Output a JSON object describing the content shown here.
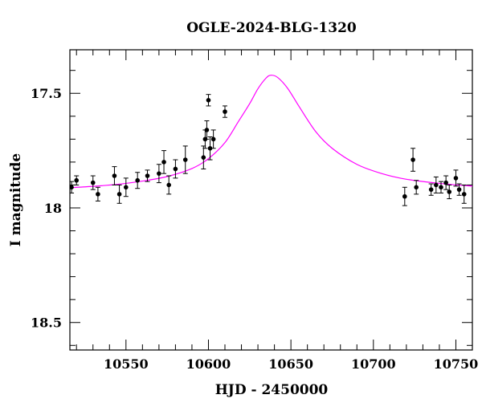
{
  "chart_data": {
    "type": "scatter",
    "title": "OGLE-2024-BLG-1320",
    "xlabel": "HJD - 2450000",
    "ylabel": "I magnitude",
    "xlim": [
      10516,
      10760
    ],
    "ylim": [
      18.62,
      17.31
    ],
    "y_inverted": true,
    "xticks": [
      10550,
      10600,
      10650,
      10700,
      10750
    ],
    "xtick_labels": [
      "10550",
      "10600",
      "10650",
      "10700",
      "10750"
    ],
    "yticks": [
      17.5,
      18,
      18.5
    ],
    "ytick_labels": [
      "17.5",
      "18",
      "18.5"
    ],
    "grid": false,
    "legend": "none",
    "colors": {
      "points": "#000000",
      "model": "#ff00ff"
    },
    "series": [
      {
        "kind": "points_with_errorbars",
        "x": [
          10517,
          10520,
          10530,
          10533,
          10543,
          10546,
          10550,
          10557,
          10563,
          10570,
          10573,
          10576,
          10580,
          10586,
          10597,
          10598,
          10599,
          10600,
          10601,
          10603,
          10610,
          10719,
          10724,
          10726,
          10735,
          10738,
          10741,
          10744,
          10746,
          10750,
          10752,
          10755
        ],
        "y": [
          17.91,
          17.88,
          17.89,
          17.94,
          17.86,
          17.94,
          17.91,
          17.88,
          17.86,
          17.85,
          17.8,
          17.9,
          17.83,
          17.79,
          17.78,
          17.7,
          17.66,
          17.53,
          17.74,
          17.7,
          17.58,
          17.95,
          17.79,
          17.91,
          17.92,
          17.9,
          17.91,
          17.89,
          17.93,
          17.87,
          17.92,
          17.94
        ],
        "err": [
          0.025,
          0.02,
          0.03,
          0.03,
          0.04,
          0.04,
          0.04,
          0.035,
          0.025,
          0.04,
          0.05,
          0.04,
          0.04,
          0.06,
          0.05,
          0.04,
          0.04,
          0.025,
          0.05,
          0.04,
          0.025,
          0.04,
          0.05,
          0.03,
          0.025,
          0.035,
          0.025,
          0.03,
          0.03,
          0.035,
          0.025,
          0.04
        ]
      },
      {
        "kind": "model_curve",
        "x": [
          10516,
          10530,
          10545,
          10560,
          10575,
          10590,
          10600,
          10610,
          10618,
          10625,
          10630,
          10635,
          10638,
          10642,
          10648,
          10655,
          10665,
          10675,
          10690,
          10705,
          10720,
          10740,
          10760
        ],
        "y": [
          17.912,
          17.906,
          17.897,
          17.883,
          17.863,
          17.828,
          17.785,
          17.715,
          17.625,
          17.545,
          17.48,
          17.433,
          17.421,
          17.431,
          17.478,
          17.558,
          17.667,
          17.74,
          17.81,
          17.85,
          17.875,
          17.893,
          17.905
        ]
      }
    ]
  }
}
